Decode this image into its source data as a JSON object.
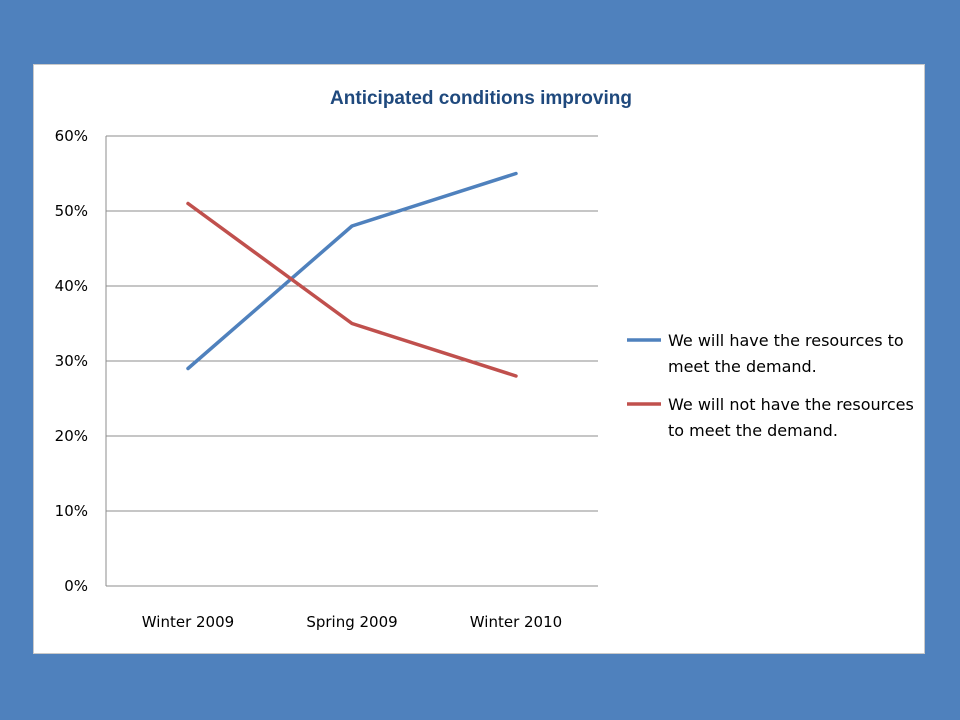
{
  "chart_data": {
    "type": "line",
    "title": "Anticipated conditions improving",
    "xlabel": "",
    "ylabel": "",
    "categories": [
      "Winter  2009",
      "Spring 2009",
      "Winter 2010"
    ],
    "ylim": [
      0,
      0.6
    ],
    "yticks": [
      0,
      0.1,
      0.2,
      0.3,
      0.4,
      0.5,
      0.6
    ],
    "ytick_labels": [
      "0%",
      "10%",
      "20%",
      "30%",
      "40%",
      "50%",
      "60%"
    ],
    "grid": true,
    "legend_position": "right",
    "series": [
      {
        "name_lines": [
          "We  will have the resources to",
          "meet the demand."
        ],
        "values": [
          0.29,
          0.48,
          0.55
        ],
        "color": "#4f81bd"
      },
      {
        "name_lines": [
          "We will not have the resources",
          "to meet the demand."
        ],
        "values": [
          0.51,
          0.35,
          0.28
        ],
        "color": "#c0504d"
      }
    ]
  }
}
